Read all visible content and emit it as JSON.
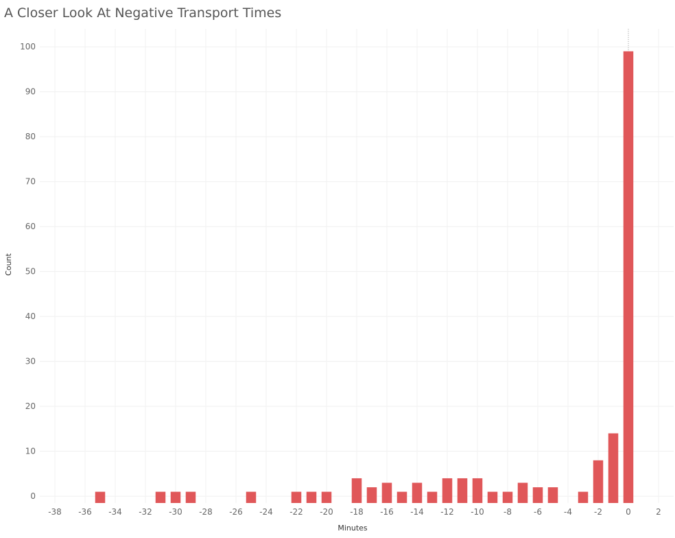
{
  "chart_data": {
    "type": "bar",
    "title": "A Closer Look At Negative Transport Times",
    "xlabel": "Minutes",
    "ylabel": "Count",
    "xlim": [
      -39,
      3
    ],
    "ylim": [
      -1.5,
      104
    ],
    "x_ticks": [
      -38,
      -36,
      -34,
      -32,
      -30,
      -28,
      -26,
      -24,
      -22,
      -20,
      -18,
      -16,
      -14,
      -12,
      -10,
      -8,
      -6,
      -4,
      -2,
      0,
      2
    ],
    "y_ticks": [
      0,
      10,
      20,
      30,
      40,
      50,
      60,
      70,
      80,
      90,
      100
    ],
    "grid": true,
    "bar_color": "#e05759",
    "x": [
      -35,
      -31,
      -30,
      -29,
      -25,
      -22,
      -21,
      -20,
      -18,
      -17,
      -16,
      -15,
      -14,
      -13,
      -12,
      -11,
      -10,
      -9,
      -8,
      -7,
      -6,
      -5,
      -3,
      -2,
      -1,
      0
    ],
    "values": [
      1,
      1,
      1,
      1,
      1,
      1,
      1,
      1,
      4,
      2,
      3,
      1,
      3,
      1,
      4,
      4,
      4,
      1,
      1,
      3,
      2,
      2,
      1,
      8,
      14,
      99
    ]
  }
}
